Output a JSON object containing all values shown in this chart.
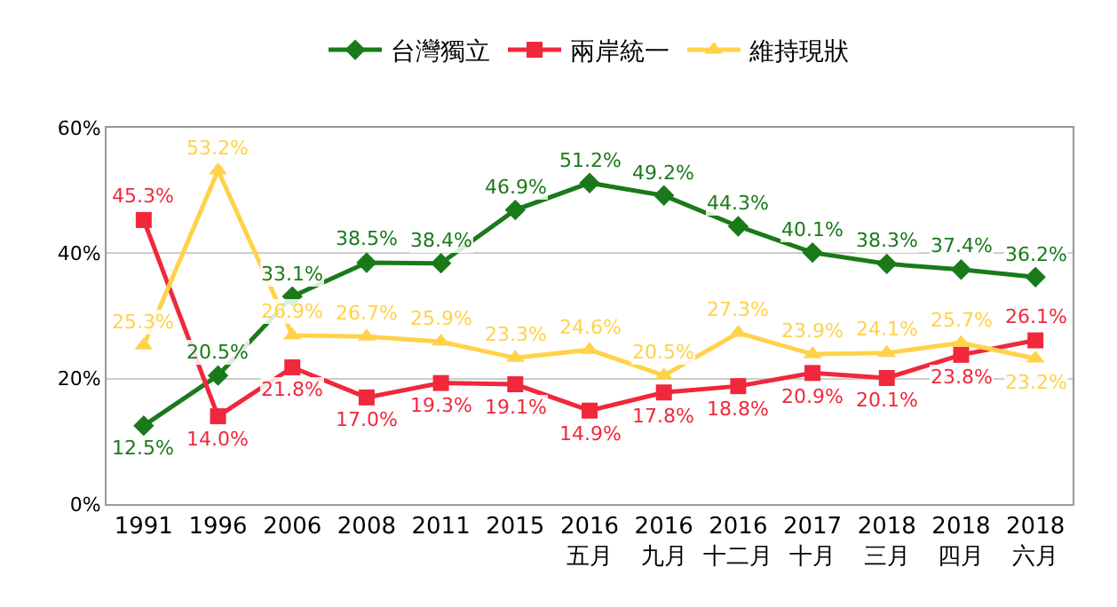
{
  "chart_data": {
    "type": "line",
    "categories": [
      "1991",
      "1996",
      "2006",
      "2008",
      "2011",
      "2015",
      "2016\n五月",
      "2016\n九月",
      "2016\n十二月",
      "2017\n十月",
      "2018\n三月",
      "2018\n四月",
      "2018\n六月"
    ],
    "series": [
      {
        "name": "台灣獨立",
        "color": "#1a7a1a",
        "marker": "diamond",
        "values": [
          12.5,
          20.5,
          33.1,
          38.5,
          38.4,
          46.9,
          51.2,
          49.2,
          44.3,
          40.1,
          38.3,
          37.4,
          36.2
        ],
        "value_labels": [
          "12.5%",
          "20.5%",
          "33.1%",
          "38.5%",
          "38.4%",
          "46.9%",
          "51.2%",
          "49.2%",
          "44.3%",
          "40.1%",
          "38.3%",
          "37.4%",
          "36.2%"
        ]
      },
      {
        "name": "兩岸統一",
        "color": "#f0283c",
        "marker": "square",
        "values": [
          45.3,
          14.0,
          21.8,
          17.0,
          19.3,
          19.1,
          14.9,
          17.8,
          18.8,
          20.9,
          20.1,
          23.8,
          26.1
        ],
        "value_labels": [
          "45.3%",
          "14.0%",
          "21.8%",
          "17.0%",
          "19.3%",
          "19.1%",
          "14.9%",
          "17.8%",
          "18.8%",
          "20.9%",
          "20.1%",
          "23.8%",
          "26.1%"
        ]
      },
      {
        "name": "維持現狀",
        "color": "#ffd24a",
        "marker": "triangle",
        "values": [
          25.3,
          53.2,
          26.9,
          26.7,
          25.9,
          23.3,
          24.6,
          20.5,
          27.3,
          23.9,
          24.1,
          25.7,
          23.2
        ],
        "value_labels": [
          "25.3%",
          "53.2%",
          "26.9%",
          "26.7%",
          "25.9%",
          "23.3%",
          "24.6%",
          "20.5%",
          "27.3%",
          "23.9%",
          "24.1%",
          "25.7%",
          "23.2%"
        ]
      }
    ],
    "ylim": [
      0,
      60
    ],
    "yticks": [
      {
        "value": 0,
        "label": "0%"
      },
      {
        "value": 20,
        "label": "20%"
      },
      {
        "value": 40,
        "label": "40%"
      },
      {
        "value": 60,
        "label": "60%"
      }
    ],
    "grid": "y",
    "legend": "top",
    "line_style": "solid"
  }
}
